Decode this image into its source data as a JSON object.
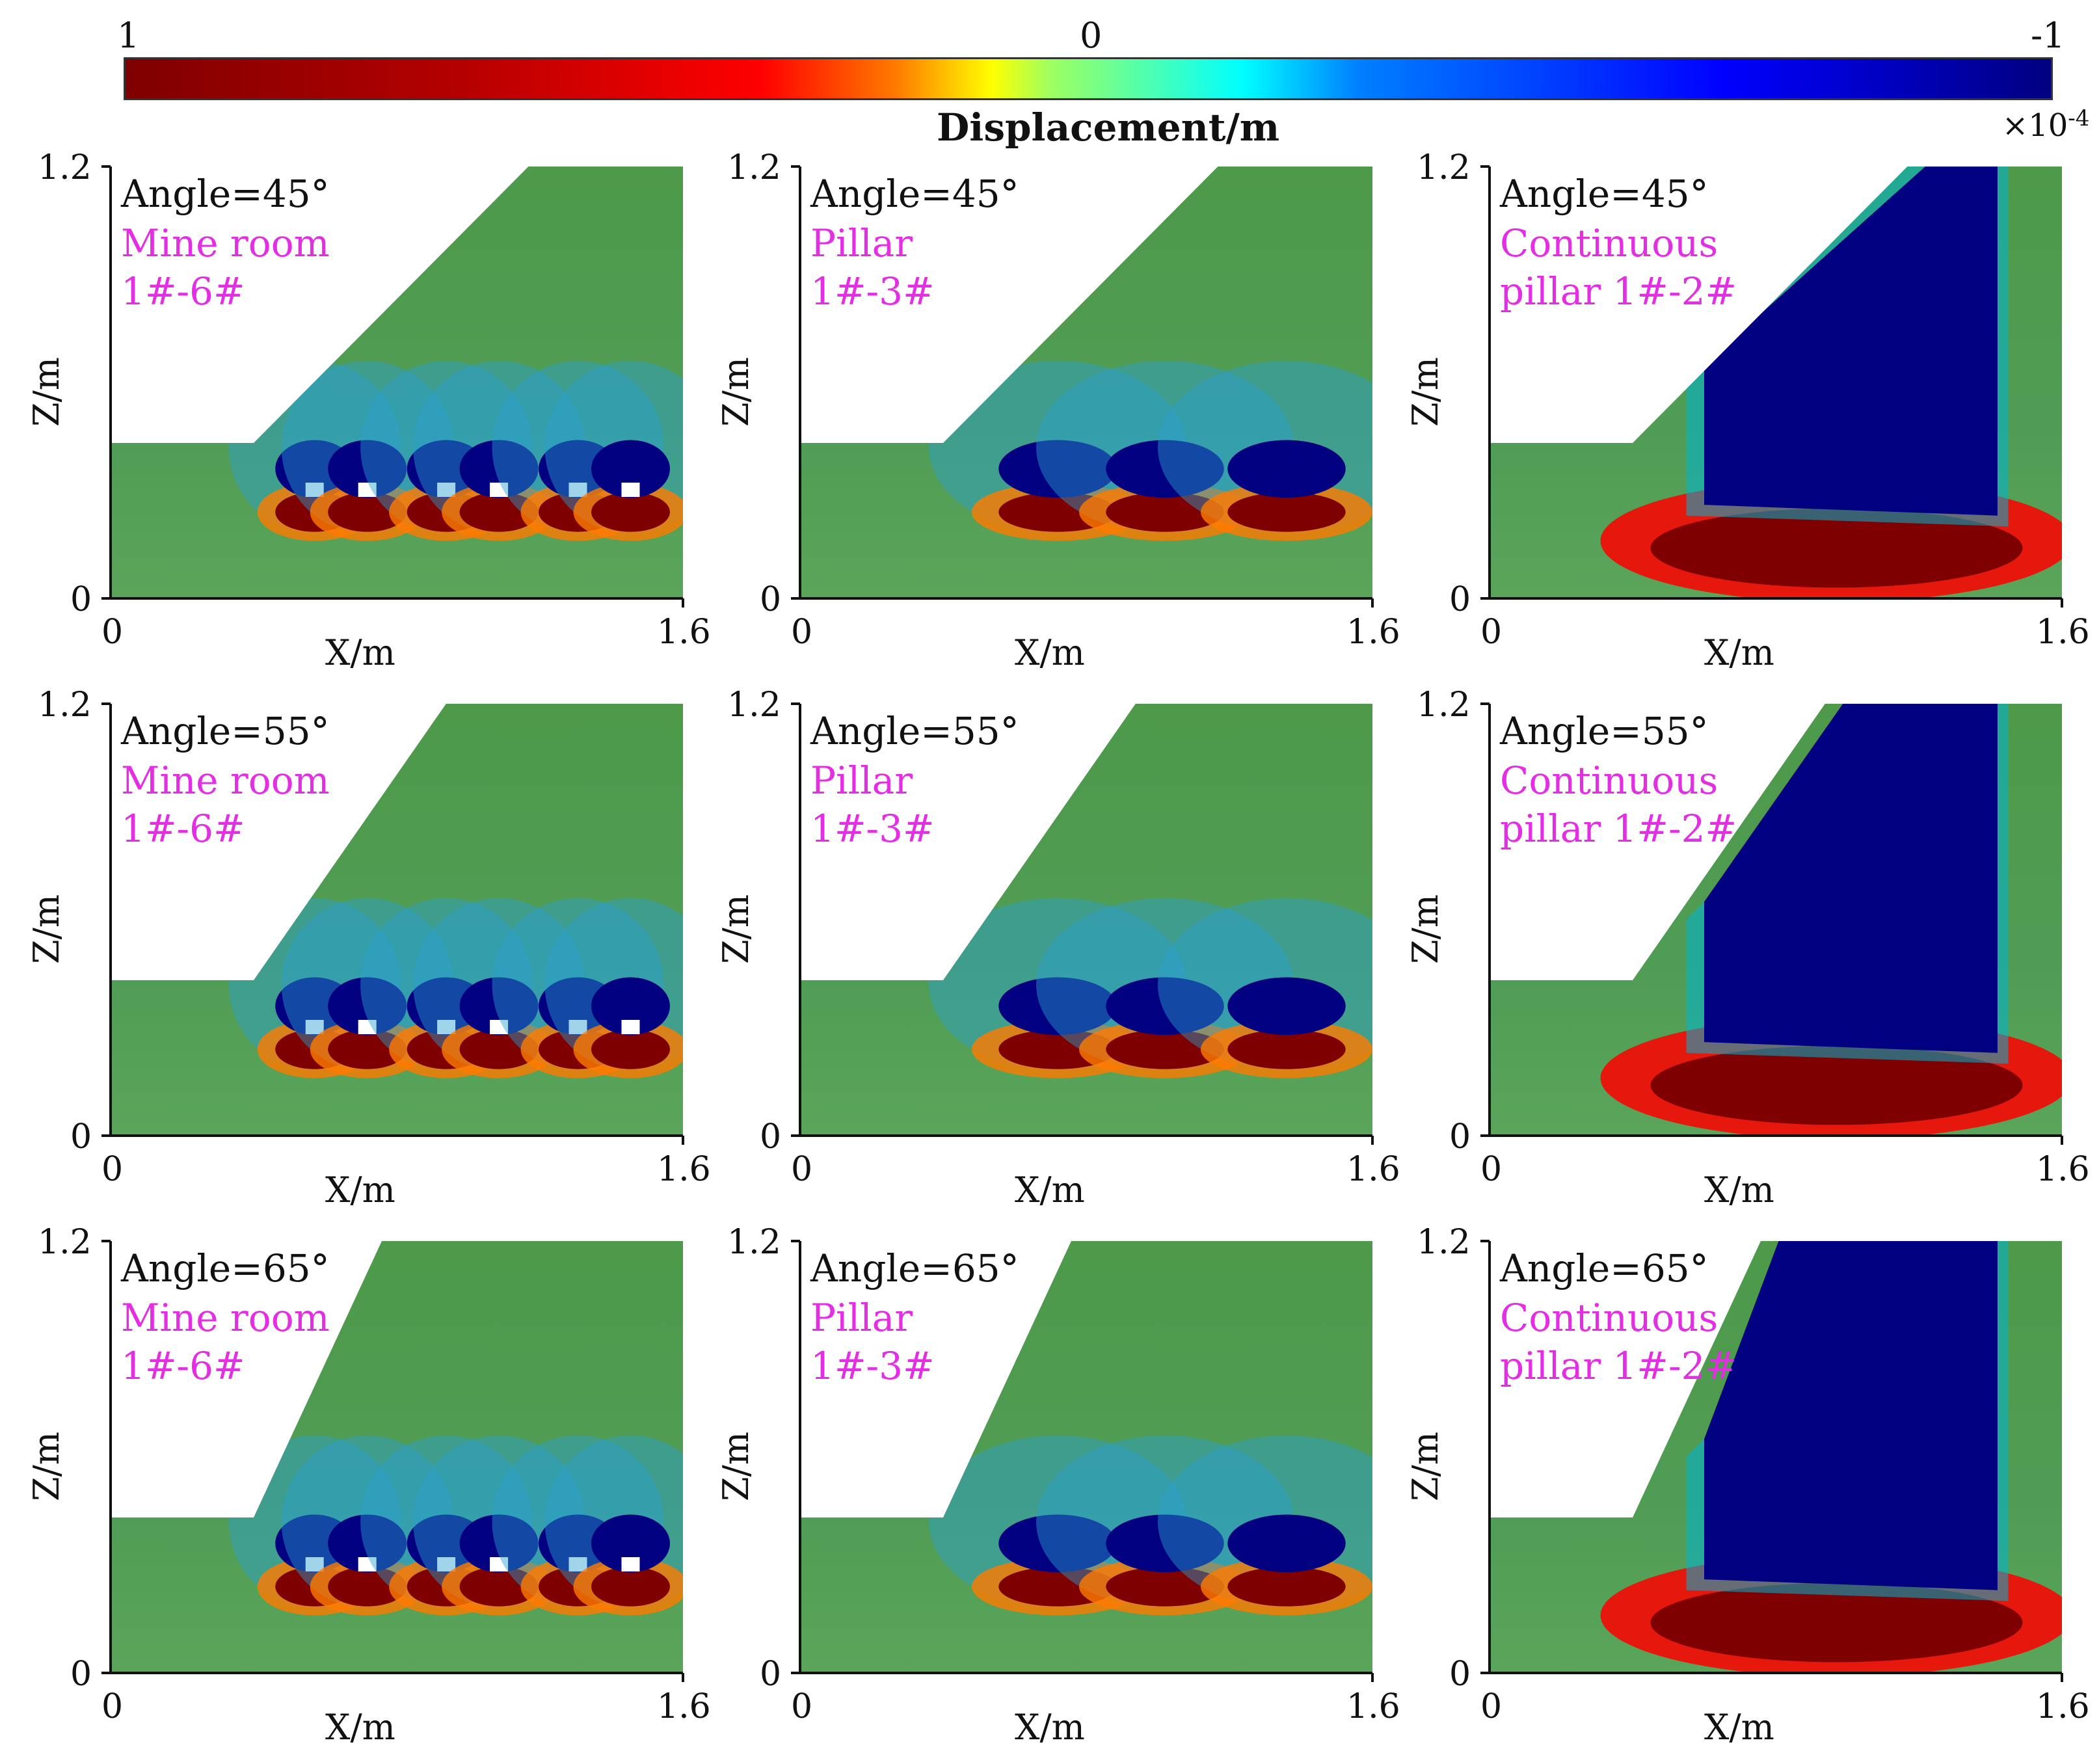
{
  "colorbar": {
    "label_left": "1",
    "label_mid": "0",
    "label_right": "-1",
    "title": "Displacement/m",
    "exponent_base": "×10",
    "exponent_power": "-4",
    "colors": [
      "#7f0000",
      "#b30000",
      "#ff0000",
      "#ff7a00",
      "#ffff00",
      "#9fff60",
      "#00ffff",
      "#0080ff",
      "#0000ff",
      "#000080"
    ]
  },
  "axes": {
    "x_label": "X/m",
    "z_label": "Z/m",
    "x_min": "0",
    "x_max": "1.6",
    "z_min": "0",
    "z_max": "1.2"
  },
  "panels": [
    {
      "angle": "Angle=45°",
      "type_line1": "Mine room",
      "type_line2": "1#-6#",
      "mode": "room"
    },
    {
      "angle": "Angle=45°",
      "type_line1": "Pillar",
      "type_line2": "1#-3#",
      "mode": "pillar"
    },
    {
      "angle": "Angle=45°",
      "type_line1": "Continuous",
      "type_line2": "pillar 1#-2#",
      "mode": "continuous"
    },
    {
      "angle": "Angle=55°",
      "type_line1": "Mine room",
      "type_line2": "1#-6#",
      "mode": "room"
    },
    {
      "angle": "Angle=55°",
      "type_line1": "Pillar",
      "type_line2": "1#-3#",
      "mode": "pillar"
    },
    {
      "angle": "Angle=55°",
      "type_line1": "Continuous",
      "type_line2": "pillar 1#-2#",
      "mode": "continuous"
    },
    {
      "angle": "Angle=65°",
      "type_line1": "Mine room",
      "type_line2": "1#-6#",
      "mode": "room"
    },
    {
      "angle": "Angle=65°",
      "type_line1": "Pillar",
      "type_line2": "1#-3#",
      "mode": "pillar"
    },
    {
      "angle": "Angle=65°",
      "type_line1": "Continuous",
      "type_line2": "pillar 1#-2#",
      "mode": "continuous"
    }
  ],
  "slope_angles_deg": [
    45,
    45,
    45,
    55,
    55,
    55,
    65,
    65,
    65
  ]
}
